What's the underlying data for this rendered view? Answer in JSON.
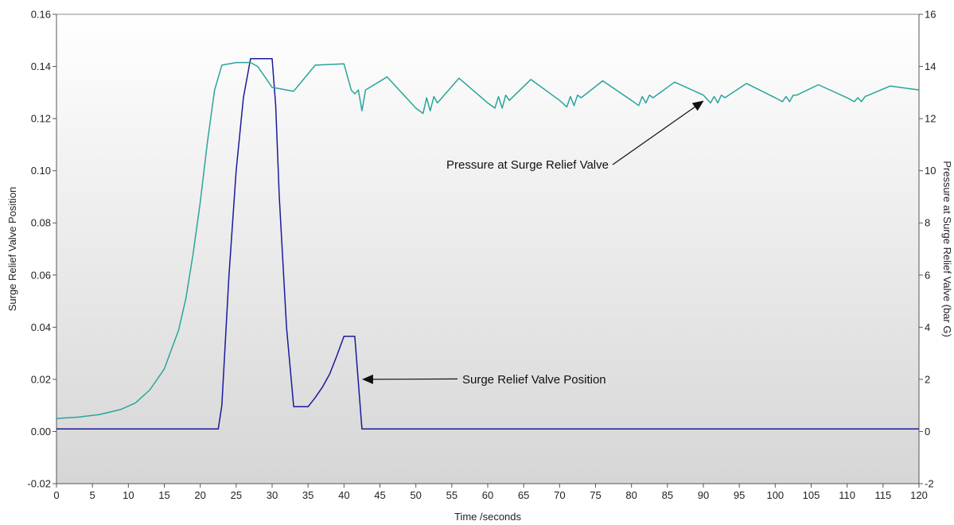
{
  "chart_data": {
    "type": "line",
    "xlabel": "Time /seconds",
    "ylabel": "Surge Relief Valve Position",
    "y2label": "Pressure at Surge Relief Valve (bar  G)",
    "xlim": [
      0,
      120
    ],
    "ylim": [
      -0.02,
      0.16
    ],
    "y2lim": [
      -2,
      16
    ],
    "x_ticks": [
      "0",
      "5",
      "10",
      "15",
      "20",
      "25",
      "30",
      "35",
      "40",
      "45",
      "50",
      "55",
      "60",
      "65",
      "70",
      "75",
      "80",
      "85",
      "90",
      "95",
      "100",
      "105",
      "110",
      "115",
      "120"
    ],
    "y_ticks": [
      "-0.02",
      "0.00",
      "0.02",
      "0.04",
      "0.06",
      "0.08",
      "0.10",
      "0.12",
      "0.14",
      "0.16"
    ],
    "y2_ticks": [
      "-2",
      "0",
      "2",
      "4",
      "6",
      "8",
      "10",
      "12",
      "14",
      "16"
    ],
    "grid": false,
    "background": "vertical gradient white to light grey",
    "series": [
      {
        "name": "Surge Relief Valve Position",
        "axis": "left",
        "color": "#1a1a9e",
        "x": [
          0,
          22.5,
          23,
          24,
          25,
          26,
          27,
          30,
          30.5,
          31,
          32,
          33,
          35,
          36,
          37,
          38,
          39,
          40,
          41.5,
          42.5,
          43,
          120
        ],
        "y": [
          0.001,
          0.001,
          0.01,
          0.06,
          0.1,
          0.128,
          0.143,
          0.143,
          0.125,
          0.09,
          0.04,
          0.0095,
          0.0095,
          0.013,
          0.017,
          0.022,
          0.029,
          0.0365,
          0.0365,
          0.001,
          0.001,
          0.001
        ]
      },
      {
        "name": "Pressure at Surge Relief Valve",
        "axis": "right",
        "color": "#2aa59a",
        "x": [
          0,
          3,
          6,
          9,
          11,
          13,
          15,
          17,
          18,
          19,
          20,
          21,
          22,
          23,
          25,
          27,
          28,
          29,
          30,
          33,
          36,
          40,
          41,
          41.5,
          42,
          42.5,
          43,
          46,
          50,
          51,
          51.5,
          52,
          52.5,
          53,
          56,
          60,
          61,
          61.5,
          62,
          62.5,
          63,
          66,
          70,
          71,
          71.5,
          72,
          72.5,
          73,
          76,
          80,
          81,
          81.5,
          82,
          82.5,
          83,
          86,
          90,
          91,
          91.5,
          92,
          92.5,
          93,
          96,
          100,
          101,
          101.5,
          102,
          102.5,
          103,
          106,
          110,
          111,
          111.5,
          112,
          112.5,
          113,
          116,
          120
        ],
        "y": [
          0.5,
          0.55,
          0.65,
          0.85,
          1.1,
          1.6,
          2.4,
          3.9,
          5.1,
          6.8,
          8.8,
          11.1,
          13.1,
          14.05,
          14.15,
          14.15,
          14.0,
          13.6,
          13.2,
          13.05,
          14.05,
          14.1,
          13.1,
          12.95,
          13.1,
          12.3,
          13.1,
          13.6,
          12.4,
          12.2,
          12.8,
          12.3,
          12.85,
          12.6,
          13.55,
          12.6,
          12.4,
          12.85,
          12.4,
          12.9,
          12.7,
          13.5,
          12.7,
          12.45,
          12.85,
          12.5,
          12.9,
          12.8,
          13.45,
          12.7,
          12.5,
          12.85,
          12.6,
          12.9,
          12.8,
          13.4,
          12.9,
          12.6,
          12.85,
          12.6,
          12.9,
          12.8,
          13.35,
          12.8,
          12.65,
          12.85,
          12.65,
          12.9,
          12.9,
          13.3,
          12.8,
          12.65,
          12.8,
          12.65,
          12.85,
          12.9,
          13.25,
          13.1
        ]
      }
    ],
    "annotations": [
      {
        "text": "Pressure at Surge Relief Valve",
        "axis": "right",
        "target_x": 90,
        "target_y": 12.9
      },
      {
        "text": "Surge Relief Valve Position",
        "axis": "left",
        "target_x": 42.5,
        "target_y": 0.02
      }
    ]
  }
}
